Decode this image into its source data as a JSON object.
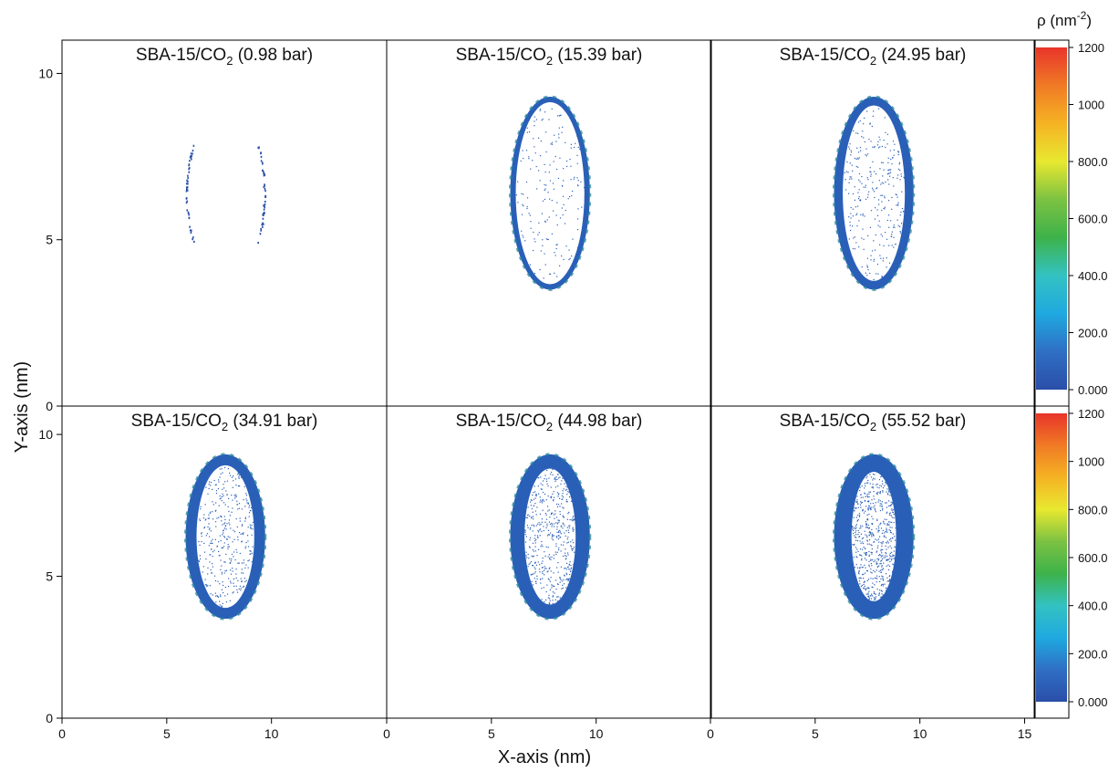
{
  "chart_data": {
    "type": "heatmap",
    "x_label": "X-axis (nm)",
    "y_label": "Y-axis (nm)",
    "xlim": [
      0,
      15.5
    ],
    "ylim": [
      0,
      11
    ],
    "x_ticks": [
      0,
      5,
      10
    ],
    "x_ticks_last": [
      0,
      5,
      10,
      15
    ],
    "y_ticks": [
      0,
      5,
      10
    ],
    "colorbar": {
      "title": "ρ (nm",
      "title_sup": "-2",
      "title_close": ")",
      "range": [
        0,
        1200
      ],
      "ticks": [
        {
          "value": 0,
          "label": "0.000"
        },
        {
          "value": 200,
          "label": "200.0"
        },
        {
          "value": 400,
          "label": "400.0"
        },
        {
          "value": 600,
          "label": "600.0"
        },
        {
          "value": 800,
          "label": "800.0"
        },
        {
          "value": 1000,
          "label": "1000"
        },
        {
          "value": 1200,
          "label": "1200"
        }
      ],
      "colors": [
        "#2a4ea8",
        "#2f6fc4",
        "#1fa9e0",
        "#33c2c2",
        "#3db24a",
        "#7cc242",
        "#e8e830",
        "#f5b323",
        "#f07a25",
        "#e8342a"
      ]
    },
    "panels": [
      {
        "prefix": "SBA-15/CO",
        "sub": "2",
        "suffix": " (0.98 bar)",
        "pressure_bar": 0.98,
        "fill": 0.02
      },
      {
        "prefix": "SBA-15/CO",
        "sub": "2",
        "suffix": " (15.39 bar)",
        "pressure_bar": 15.39,
        "fill": 0.1
      },
      {
        "prefix": "SBA-15/CO",
        "sub": "2",
        "suffix": " (24.95 bar)",
        "pressure_bar": 24.95,
        "fill": 0.16
      },
      {
        "prefix": "SBA-15/CO",
        "sub": "2",
        "suffix": " (34.91 bar)",
        "pressure_bar": 34.91,
        "fill": 0.2
      },
      {
        "prefix": "SBA-15/CO",
        "sub": "2",
        "suffix": " (44.98 bar)",
        "pressure_bar": 44.98,
        "fill": 0.26
      },
      {
        "prefix": "SBA-15/CO",
        "sub": "2",
        "suffix": " (55.52 bar)",
        "pressure_bar": 55.52,
        "fill": 0.32
      }
    ],
    "pore_center": [
      7.8,
      6.4
    ],
    "pore_radii": [
      3.8,
      5.8
    ]
  }
}
